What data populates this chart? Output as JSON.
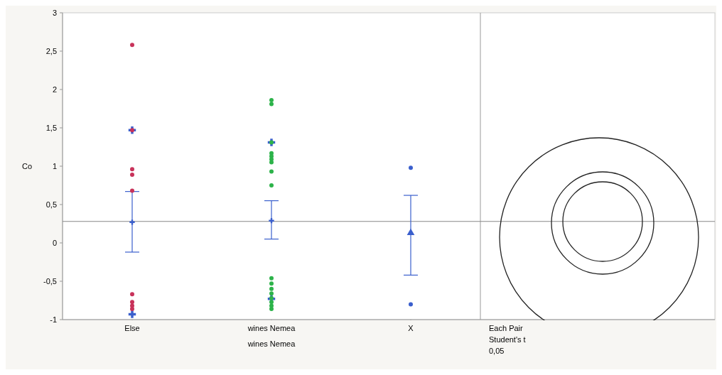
{
  "chart_data": {
    "type": "scatter",
    "ylabel": "Co",
    "xlabel": "wines Nemea",
    "categories": [
      "Else",
      "wines Nemea",
      "X"
    ],
    "ylim": [
      -1,
      3
    ],
    "yticks": [
      -1,
      {
        "value": -0.5,
        "label": "-0,5"
      },
      0,
      {
        "value": 0.5,
        "label": "0,5"
      },
      1,
      {
        "value": 1.5,
        "label": "1,5"
      },
      2,
      {
        "value": 2.5,
        "label": "2,5"
      },
      3
    ],
    "grid": false,
    "marker": "circle",
    "series": [
      {
        "color": "#c8325a",
        "x": [
          "Else",
          "Else",
          "Else",
          "Else",
          "Else",
          "Else",
          "Else",
          "Else",
          "Else"
        ],
        "values": [
          2.58,
          1.47,
          0.96,
          0.89,
          0.68,
          -0.67,
          -0.77,
          -0.82,
          -0.86
        ]
      },
      {
        "color": "#2db34a",
        "x": [
          "wines Nemea",
          "wines Nemea",
          "wines Nemea",
          "wines Nemea",
          "wines Nemea",
          "wines Nemea",
          "wines Nemea",
          "wines Nemea",
          "wines Nemea",
          "wines Nemea",
          "wines Nemea",
          "wines Nemea",
          "wines Nemea",
          "wines Nemea",
          "wines Nemea",
          "wines Nemea",
          "wines Nemea"
        ],
        "values": [
          1.86,
          1.81,
          1.31,
          1.17,
          1.13,
          1.09,
          1.05,
          0.93,
          0.75,
          -0.46,
          -0.53,
          -0.6,
          -0.66,
          -0.72,
          -0.77,
          -0.82,
          -0.86
        ]
      },
      {
        "color": "#3a5fcd",
        "x": [
          "X",
          "X"
        ],
        "values": [
          0.98,
          -0.8
        ]
      },
      {
        "color": "#3a5fcd",
        "marker": "cross",
        "x": [
          "Else",
          "wines Nemea"
        ],
        "values": [
          0.27,
          0.29
        ],
        "errors": [
          [
            -0.12,
            0.67
          ],
          [
            0.05,
            0.55
          ]
        ]
      },
      {
        "color": "#3a5fcd",
        "marker": "triangle",
        "x": [
          "X"
        ],
        "values": [
          0.13
        ],
        "errors": [
          [
            -0.42,
            0.62
          ]
        ]
      },
      {
        "color": "#3a5fcd",
        "marker": "cross",
        "x": [
          "Else",
          "Else",
          "wines Nemea",
          "wines Nemea"
        ],
        "values": [
          1.47,
          -0.93,
          1.31,
          -0.73
        ]
      }
    ],
    "ref_lines": [
      {
        "axis": "y",
        "value": 0.28,
        "color": "#888888"
      }
    ],
    "annotations": [
      "Each Pair",
      "Student's t",
      "0,05"
    ]
  }
}
